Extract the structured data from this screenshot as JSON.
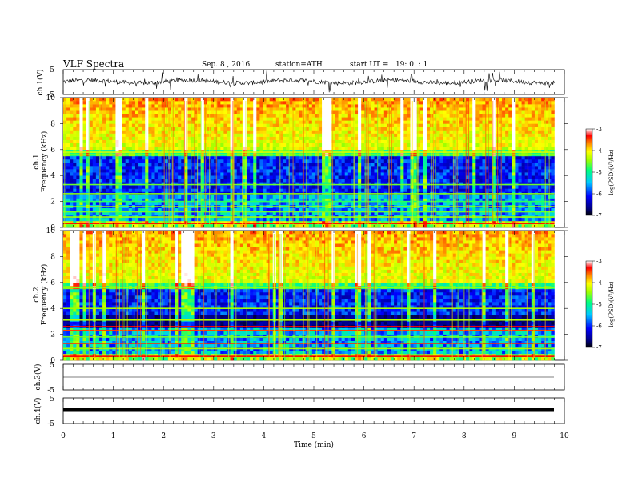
{
  "header": {
    "title": "VLF Spectra",
    "date": "Sep. 8 , 2016",
    "station": "station=ATH",
    "start": "start UT =   19: 0  : 1"
  },
  "chart_data": [
    {
      "type": "line",
      "name": "ch1-waveform",
      "ylabel": "ch.1(V)",
      "yticks": [
        "5",
        "-5"
      ],
      "ylim": [
        -5,
        5
      ],
      "xlim": [
        0,
        10
      ],
      "data_extent_min": 9.8
    },
    {
      "type": "heatmap",
      "name": "ch1-spectrogram",
      "ylabel_channel": "ch.1",
      "ylabel": "Frequency (kHz)",
      "yticks": [
        "0",
        "2",
        "4",
        "6",
        "8",
        "10"
      ],
      "ylim": [
        0,
        10
      ],
      "xlim": [
        0,
        10
      ],
      "data_extent_min": 9.8,
      "colorbar": {
        "label": "log(PSD)(V²/Hz)",
        "ticks": [
          "-3",
          "-4",
          "-5",
          "-6",
          "-7"
        ],
        "range": [
          -7,
          -3
        ]
      }
    },
    {
      "type": "heatmap",
      "name": "ch2-spectrogram",
      "ylabel_channel": "ch.2",
      "ylabel": "Frequency (kHz)",
      "yticks": [
        "0",
        "2",
        "4",
        "6",
        "8",
        "10"
      ],
      "ylim": [
        0,
        10
      ],
      "xlim": [
        0,
        10
      ],
      "data_extent_min": 9.8,
      "colorbar": {
        "label": "log(PSD)(V²/Hz)",
        "ticks": [
          "-3",
          "-4",
          "-5",
          "-6",
          "-7"
        ],
        "range": [
          -7,
          -3
        ]
      }
    },
    {
      "type": "line",
      "name": "ch3-waveform",
      "ylabel": "ch.3(V)",
      "yticks": [
        "5",
        "-5"
      ],
      "ylim": [
        -5,
        5
      ],
      "xlim": [
        0,
        10
      ],
      "data_extent_min": 9.8
    },
    {
      "type": "line",
      "name": "ch4-waveform",
      "ylabel": "ch.4(V)",
      "yticks": [
        "5",
        "-5"
      ],
      "ylim": [
        -5,
        5
      ],
      "xlim": [
        0,
        10
      ],
      "data_extent_min": 9.8
    }
  ],
  "xaxis": {
    "label": "Time (min)",
    "ticks": [
      "0",
      "1",
      "2",
      "3",
      "4",
      "5",
      "6",
      "7",
      "8",
      "9",
      "10"
    ]
  }
}
